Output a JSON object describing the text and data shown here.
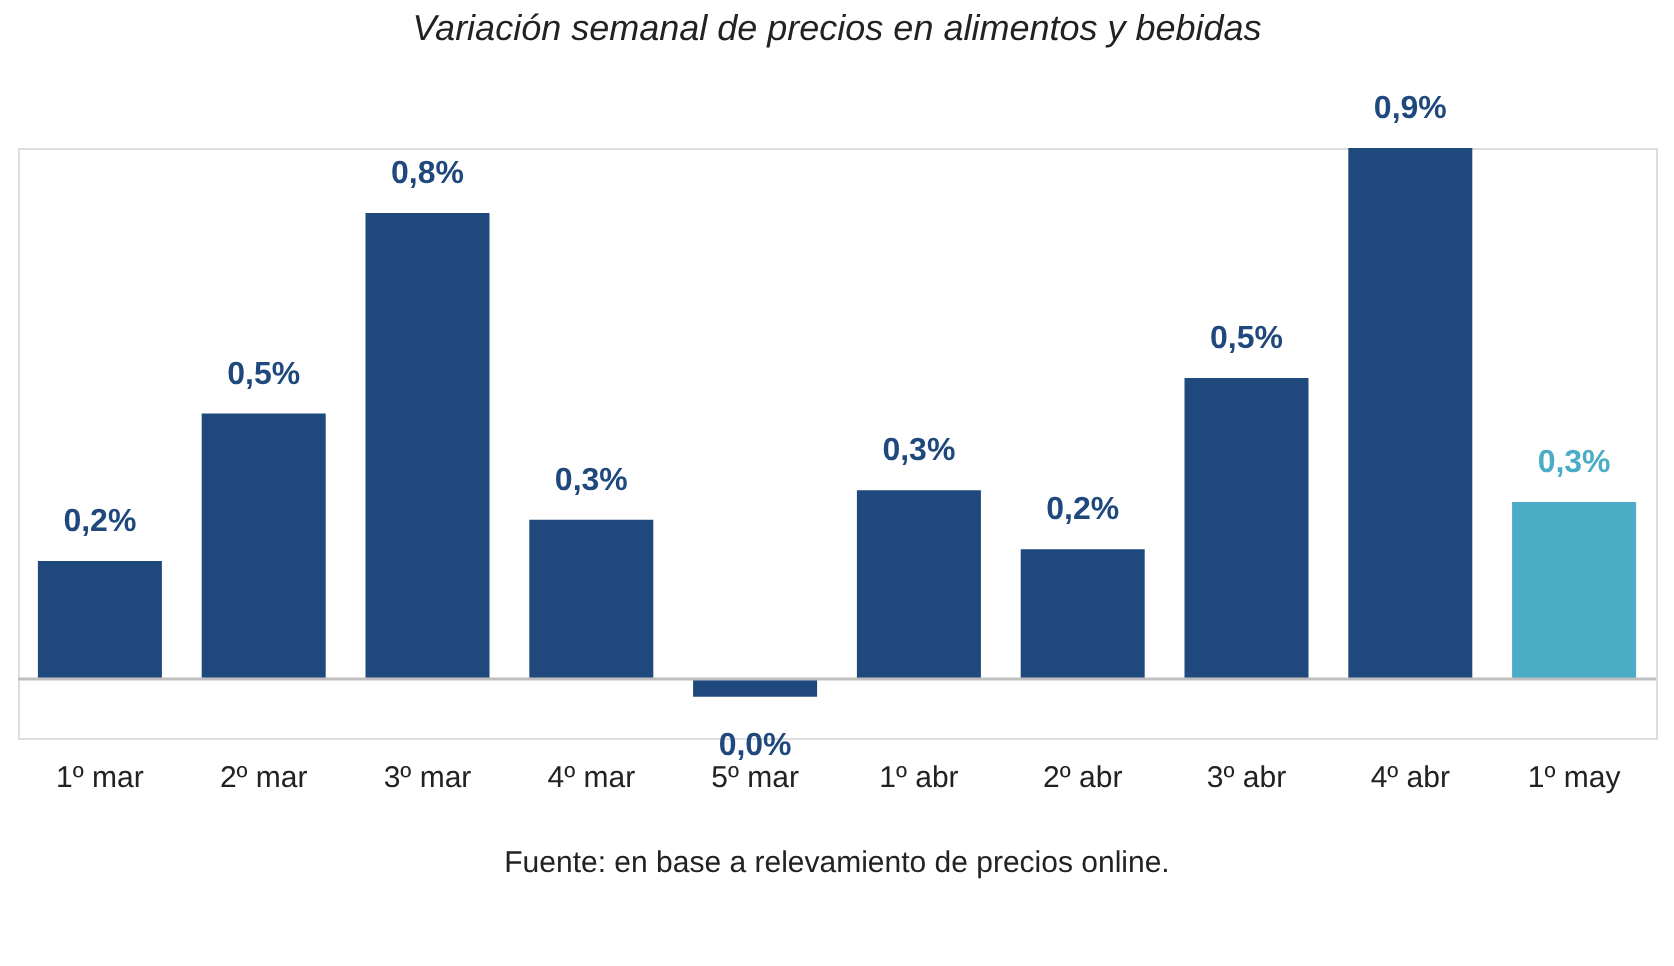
{
  "chart_data": {
    "type": "bar",
    "title": "Variación semanal de precios en alimentos y bebidas",
    "categories": [
      "1º mar",
      "2º mar",
      "3º mar",
      "4º mar",
      "5º mar",
      "1º abr",
      "2º abr",
      "3º abr",
      "4º abr",
      "1º may"
    ],
    "values": [
      0.2,
      0.45,
      0.79,
      0.27,
      -0.03,
      0.32,
      0.22,
      0.51,
      0.9,
      0.3
    ],
    "value_labels": [
      "0,2%",
      "0,5%",
      "0,8%",
      "0,3%",
      "0,0%",
      "0,3%",
      "0,2%",
      "0,5%",
      "0,9%",
      "0,3%"
    ],
    "colors": [
      "#1f497d",
      "#1f497d",
      "#1f497d",
      "#1f497d",
      "#1f497d",
      "#1f497d",
      "#1f497d",
      "#1f497d",
      "#1f497d",
      "#4bacc6"
    ],
    "annotations": [
      "Fuente: en base a relevamiento de precios online."
    ],
    "grid": false
  }
}
